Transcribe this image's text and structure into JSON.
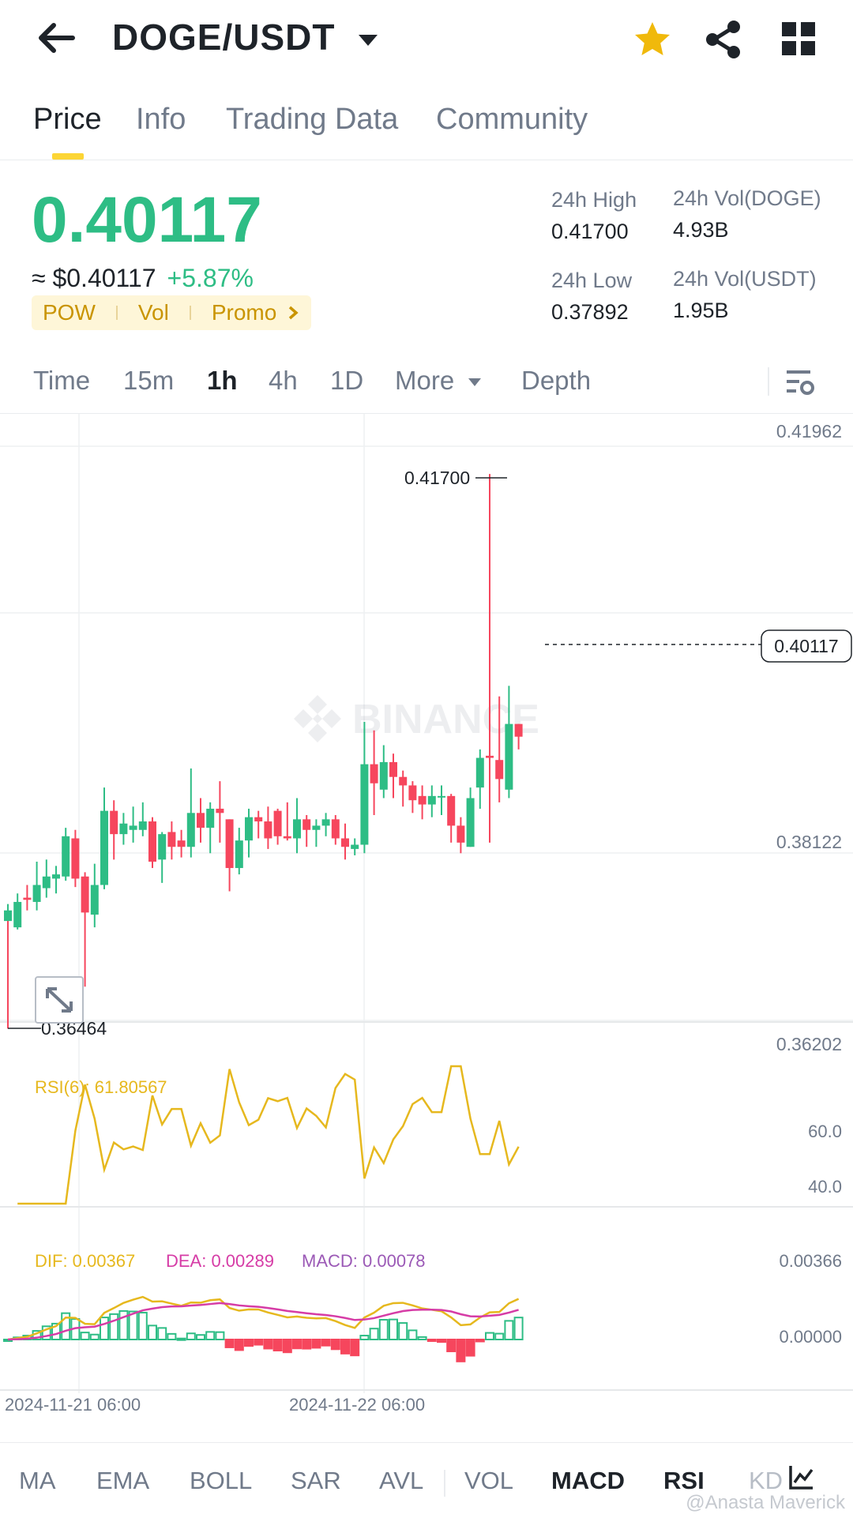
{
  "header": {
    "pair": "DOGE/USDT"
  },
  "tabs": [
    {
      "label": "Price"
    },
    {
      "label": "Info"
    },
    {
      "label": "Trading Data"
    },
    {
      "label": "Community"
    }
  ],
  "ticker": {
    "last_price": "0.40117",
    "usd_price": "≈ $0.40117",
    "change": "+5.87%",
    "tags": [
      "POW",
      "Vol",
      "Promo"
    ]
  },
  "stats": {
    "high_label": "24h High",
    "high_value": "0.41700",
    "low_label": "24h Low",
    "low_value": "0.37892",
    "vol_doge_label": "24h Vol(DOGE)",
    "vol_doge_value": "4.93B",
    "vol_usdt_label": "24h Vol(USDT)",
    "vol_usdt_value": "1.95B"
  },
  "intervals": [
    {
      "label": "Time"
    },
    {
      "label": "15m"
    },
    {
      "label": "1h"
    },
    {
      "label": "4h"
    },
    {
      "label": "1D"
    },
    {
      "label": "More"
    },
    {
      "label": "Depth"
    }
  ],
  "price_axis": [
    "0.41962",
    "0.38122",
    "0.36202"
  ],
  "current_price_tag": "0.40117",
  "high_marker": "0.41700",
  "low_marker": "0.36464",
  "rsi": {
    "label": "RSI(6): 61.80567",
    "axis": [
      "60.0",
      "40.0"
    ]
  },
  "macd": {
    "dif_label": "DIF: 0.00367",
    "dea_label": "DEA: 0.00289",
    "macd_label": "MACD: 0.00078",
    "axis": [
      "0.00366",
      "0.00000"
    ]
  },
  "time_axis": [
    "2024-11-21 06:00",
    "2024-11-22 06:00"
  ],
  "indicators": [
    {
      "label": "MA"
    },
    {
      "label": "EMA"
    },
    {
      "label": "BOLL"
    },
    {
      "label": "SAR"
    },
    {
      "label": "AVL"
    },
    {
      "label": "VOL"
    },
    {
      "label": "MACD"
    },
    {
      "label": "RSI"
    },
    {
      "label": "KD"
    }
  ],
  "credit": "@Anasta Maverick",
  "colors": {
    "up": "#2ebd85",
    "down": "#f6465d",
    "accent": "#fcd535",
    "rsi": "#e6b81e",
    "dea": "#d63ca6",
    "macd": "#9b59b6"
  },
  "chart_data": {
    "type": "candlestick",
    "ylim": [
      0.36202,
      0.41962
    ],
    "candles": [
      [
        0.3748,
        0.3758,
        0.3726,
        0.3764
      ],
      [
        0.3742,
        0.3766,
        0.374,
        0.3774
      ],
      [
        0.377,
        0.3768,
        0.3758,
        0.3782
      ],
      [
        0.3766,
        0.3782,
        0.3758,
        0.3804
      ],
      [
        0.3779,
        0.379,
        0.377,
        0.3806
      ],
      [
        0.3788,
        0.3792,
        0.3774,
        0.38
      ],
      [
        0.379,
        0.3828,
        0.3786,
        0.3836
      ],
      [
        0.3826,
        0.3788,
        0.378,
        0.3834
      ],
      [
        0.379,
        0.3756,
        0.3686,
        0.3794
      ],
      [
        0.3754,
        0.3782,
        0.3742,
        0.3802
      ],
      [
        0.3782,
        0.3852,
        0.3778,
        0.3874
      ],
      [
        0.3852,
        0.383,
        0.3806,
        0.3862
      ],
      [
        0.383,
        0.384,
        0.382,
        0.385
      ],
      [
        0.3834,
        0.3838,
        0.3822,
        0.3856
      ],
      [
        0.3834,
        0.3842,
        0.3828,
        0.386
      ],
      [
        0.3842,
        0.3804,
        0.3798,
        0.3846
      ],
      [
        0.3806,
        0.383,
        0.3784,
        0.3832
      ],
      [
        0.3832,
        0.3818,
        0.3806,
        0.3842
      ],
      [
        0.3824,
        0.3818,
        0.3808,
        0.3834
      ],
      [
        0.3818,
        0.385,
        0.3808,
        0.3892
      ],
      [
        0.385,
        0.3836,
        0.3822,
        0.3864
      ],
      [
        0.3836,
        0.3854,
        0.3812,
        0.386
      ],
      [
        0.3854,
        0.385,
        0.3822,
        0.388
      ],
      [
        0.3844,
        0.3798,
        0.3776,
        0.3844
      ],
      [
        0.3798,
        0.3824,
        0.3792,
        0.3836
      ],
      [
        0.3824,
        0.3846,
        0.3808,
        0.3854
      ],
      [
        0.3846,
        0.3842,
        0.3826,
        0.3852
      ],
      [
        0.3842,
        0.3826,
        0.3816,
        0.3856
      ],
      [
        0.3852,
        0.3828,
        0.382,
        0.3854
      ],
      [
        0.3828,
        0.3826,
        0.3824,
        0.386
      ],
      [
        0.3826,
        0.3844,
        0.3812,
        0.3864
      ],
      [
        0.3844,
        0.3834,
        0.3818,
        0.3848
      ],
      [
        0.3834,
        0.3838,
        0.3818,
        0.3844
      ],
      [
        0.3838,
        0.3844,
        0.3828,
        0.385
      ],
      [
        0.3844,
        0.3826,
        0.382,
        0.3848
      ],
      [
        0.3826,
        0.3818,
        0.3806,
        0.384
      ],
      [
        0.3816,
        0.382,
        0.381,
        0.3826
      ],
      [
        0.382,
        0.3896,
        0.3812,
        0.3936
      ],
      [
        0.3896,
        0.3878,
        0.3848,
        0.3928
      ],
      [
        0.3872,
        0.3898,
        0.3864,
        0.3914
      ],
      [
        0.3898,
        0.3884,
        0.3864,
        0.3906
      ],
      [
        0.3884,
        0.3876,
        0.3856,
        0.389
      ],
      [
        0.3876,
        0.3862,
        0.385,
        0.388
      ],
      [
        0.3866,
        0.3858,
        0.3844,
        0.3876
      ],
      [
        0.3858,
        0.3866,
        0.3846,
        0.3876
      ],
      [
        0.3866,
        0.3866,
        0.3848,
        0.3876
      ],
      [
        0.3866,
        0.3838,
        0.3822,
        0.3868
      ],
      [
        0.3838,
        0.3822,
        0.3812,
        0.3846
      ],
      [
        0.3818,
        0.3864,
        0.3818,
        0.3874
      ],
      [
        0.3874,
        0.3902,
        0.3854,
        0.391
      ],
      [
        0.3904,
        0.3902,
        0.3822,
        0.417
      ],
      [
        0.39,
        0.3882,
        0.386,
        0.396
      ],
      [
        0.3872,
        0.3934,
        0.3864,
        0.397
      ],
      [
        0.3934,
        0.3922,
        0.391,
        0.3934
      ]
    ]
  }
}
